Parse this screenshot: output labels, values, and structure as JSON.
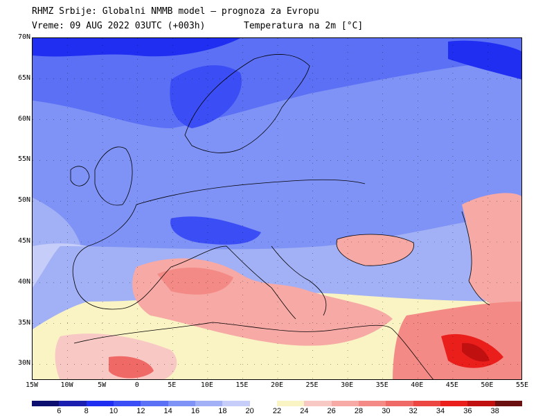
{
  "header": {
    "title": "RHMZ Srbije: Globalni NMMB model — prognoza za Evropu",
    "valid_time": "Vreme: 09 AUG 2022 03UTC (+003h)",
    "field": "Temperatura na 2m [°C]"
  },
  "map": {
    "lat_labels": [
      "70N",
      "65N",
      "60N",
      "55N",
      "50N",
      "45N",
      "40N",
      "35N",
      "30N"
    ],
    "lon_labels": [
      "15W",
      "10W",
      "5W",
      "0",
      "5E",
      "10E",
      "15E",
      "20E",
      "25E",
      "30E",
      "35E",
      "40E",
      "45E",
      "50E",
      "55E"
    ]
  },
  "colorbar": {
    "colors": [
      "#0d0f6e",
      "#1a1fb0",
      "#1f2ef0",
      "#3b4df5",
      "#5c70f5",
      "#7f92f5",
      "#a2b0f5",
      "#c5cdf8",
      "#ffffff",
      "#faf4c4",
      "#f8c8c4",
      "#f6a9a5",
      "#f38a86",
      "#ef6a66",
      "#eb4642",
      "#ea1f1c",
      "#c01010",
      "#6a1010"
    ],
    "labels": [
      "6",
      "8",
      "10",
      "12",
      "14",
      "16",
      "18",
      "20",
      "22",
      "24",
      "26",
      "28",
      "30",
      "32",
      "34",
      "36",
      "38"
    ]
  }
}
